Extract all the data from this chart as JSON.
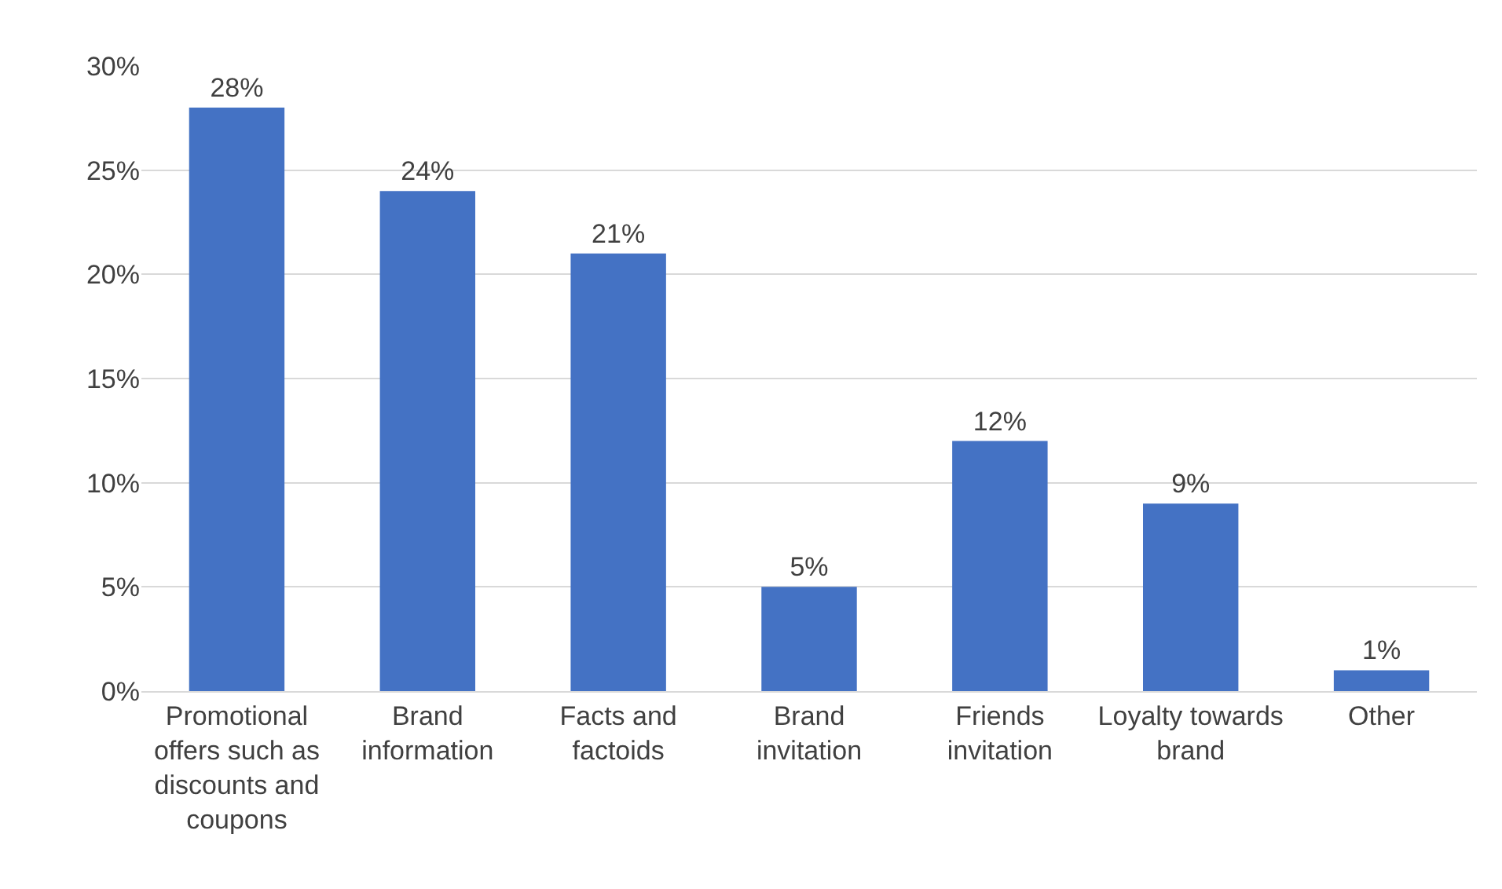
{
  "chart_data": {
    "type": "bar",
    "categories": [
      "Promotional offers such as discounts and coupons",
      "Brand information",
      "Facts and factoids",
      "Brand invitation",
      "Friends invitation",
      "Loyalty towards brand",
      "Other"
    ],
    "values": [
      28,
      24,
      21,
      5,
      12,
      9,
      1
    ],
    "value_labels": [
      "28%",
      "24%",
      "21%",
      "5%",
      "12%",
      "9%",
      "1%"
    ],
    "color": "#4472c4",
    "ylim": [
      0,
      30
    ],
    "yticks": [
      {
        "value": 0,
        "label": "0%"
      },
      {
        "value": 5,
        "label": "5%"
      },
      {
        "value": 10,
        "label": "10%"
      },
      {
        "value": 15,
        "label": "15%"
      },
      {
        "value": 20,
        "label": "20%"
      },
      {
        "value": 25,
        "label": "25%"
      },
      {
        "value": 30,
        "label": "30%"
      }
    ],
    "grid": "y"
  }
}
